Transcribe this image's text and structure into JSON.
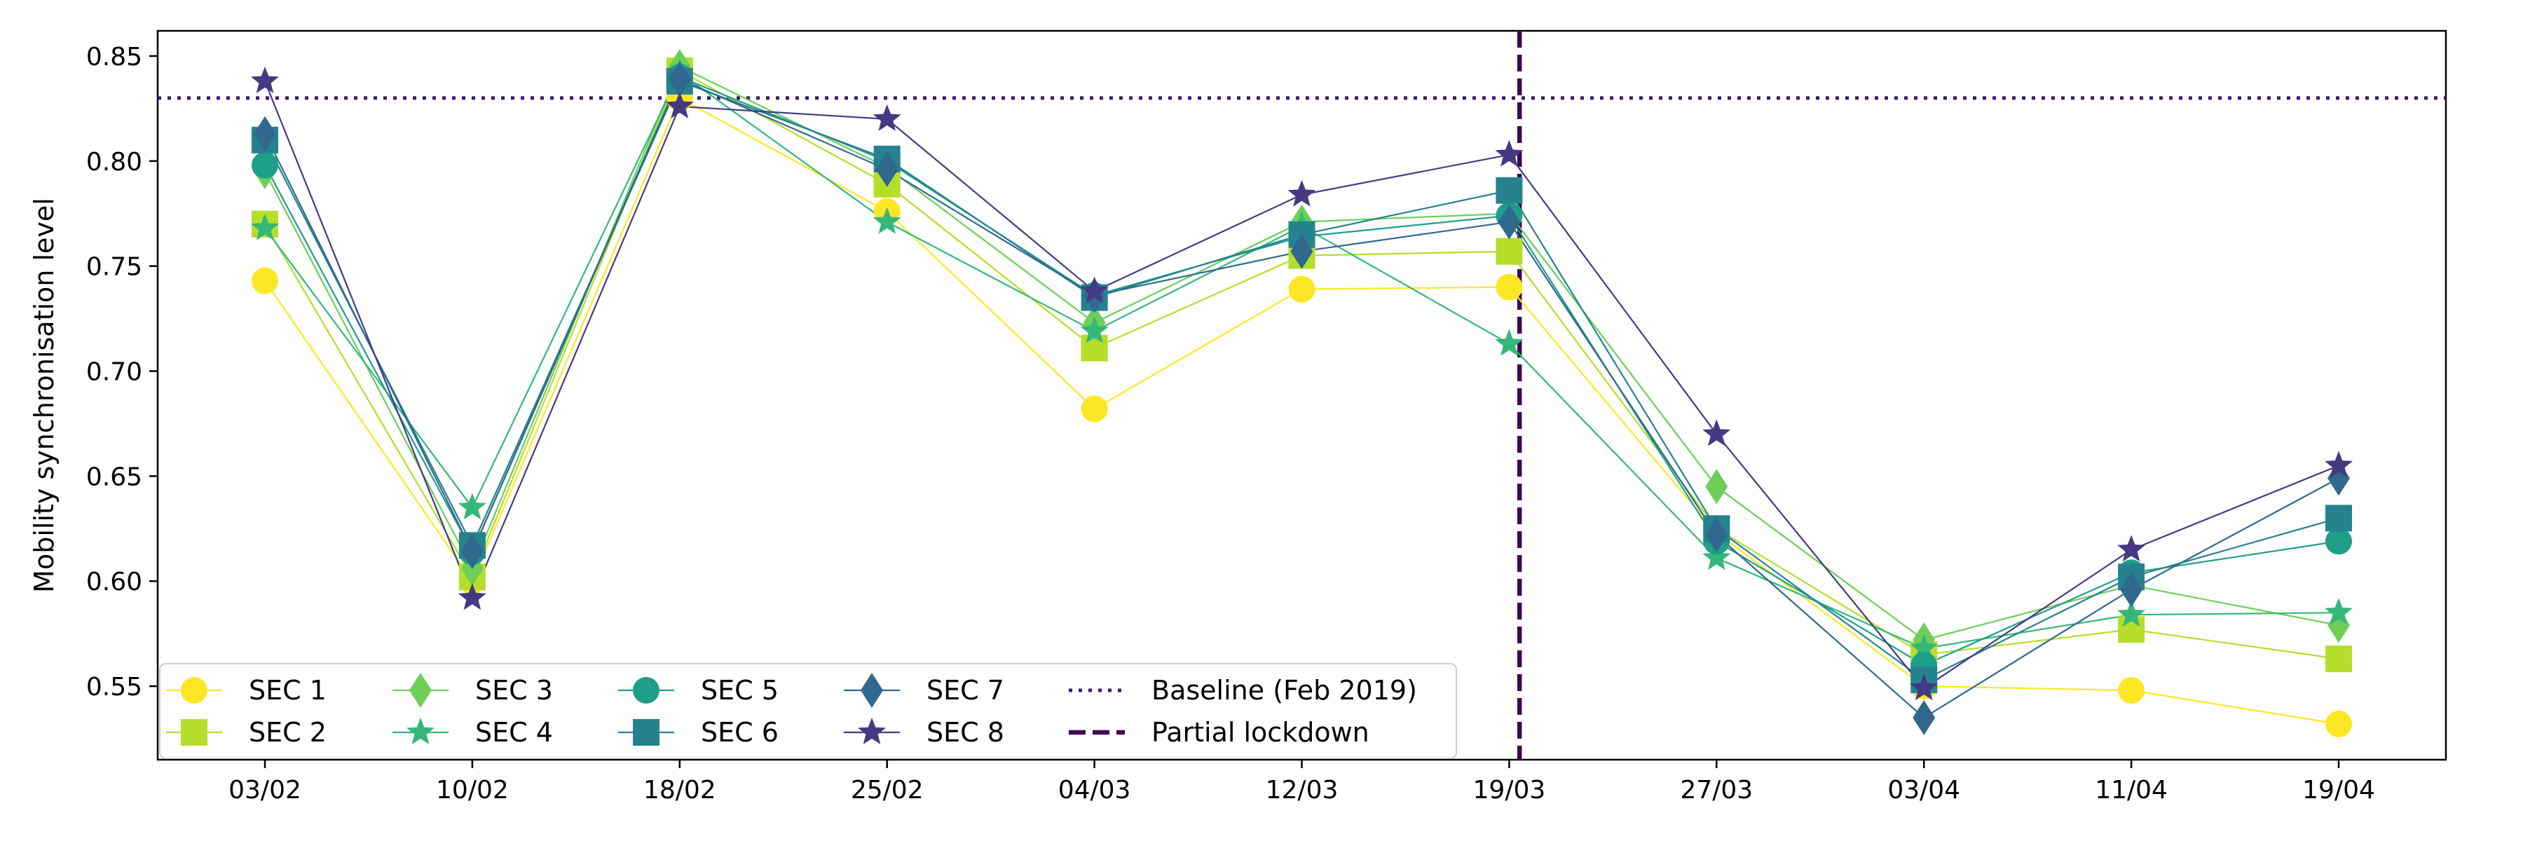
{
  "chart_data": {
    "type": "line",
    "title": "",
    "xlabel": "",
    "ylabel": "Mobility synchronisation level",
    "categories": [
      "03/02",
      "10/02",
      "18/02",
      "25/02",
      "04/03",
      "12/03",
      "19/03",
      "27/03",
      "03/04",
      "11/04",
      "19/04"
    ],
    "ylim": [
      0.515,
      0.862
    ],
    "yticks": [
      0.55,
      0.6,
      0.65,
      0.7,
      0.75,
      0.8,
      0.85
    ],
    "ytick_labels": [
      "0.55",
      "0.60",
      "0.65",
      "0.70",
      "0.75",
      "0.80",
      "0.85"
    ],
    "grid": false,
    "legend_position": "lower-left",
    "series": [
      {
        "name": "SEC 1",
        "color": "#fde725",
        "marker": "circle",
        "values": [
          0.743,
          0.6,
          0.83,
          0.776,
          0.682,
          0.739,
          0.74,
          0.623,
          0.55,
          0.548,
          0.532
        ]
      },
      {
        "name": "SEC 2",
        "color": "#b5de2b",
        "marker": "square",
        "values": [
          0.77,
          0.602,
          0.843,
          0.789,
          0.711,
          0.755,
          0.757,
          0.625,
          0.565,
          0.577,
          0.563
        ]
      },
      {
        "name": "SEC 3",
        "color": "#6ece58",
        "marker": "diamond",
        "values": [
          0.795,
          0.606,
          0.845,
          0.797,
          0.723,
          0.771,
          0.775,
          0.645,
          0.572,
          0.598,
          0.579
        ]
      },
      {
        "name": "SEC 4",
        "color": "#35b779",
        "marker": "star",
        "values": [
          0.768,
          0.635,
          0.842,
          0.771,
          0.719,
          0.769,
          0.713,
          0.611,
          0.568,
          0.584,
          0.585
        ]
      },
      {
        "name": "SEC 5",
        "color": "#1f9e89",
        "marker": "circle",
        "values": [
          0.798,
          0.614,
          0.84,
          0.8,
          0.736,
          0.764,
          0.774,
          0.619,
          0.56,
          0.604,
          0.619
        ]
      },
      {
        "name": "SEC 6",
        "color": "#26828e",
        "marker": "square",
        "values": [
          0.81,
          0.617,
          0.838,
          0.801,
          0.735,
          0.765,
          0.786,
          0.625,
          0.553,
          0.602,
          0.63
        ]
      },
      {
        "name": "SEC 7",
        "color": "#31688e",
        "marker": "diamond",
        "values": [
          0.813,
          0.614,
          0.839,
          0.796,
          0.736,
          0.757,
          0.771,
          0.622,
          0.535,
          0.596,
          0.649
        ]
      },
      {
        "name": "SEC 8",
        "color": "#443a83",
        "marker": "star",
        "values": [
          0.838,
          0.592,
          0.826,
          0.82,
          0.738,
          0.784,
          0.803,
          0.67,
          0.549,
          0.615,
          0.655
        ]
      }
    ],
    "reference_lines": [
      {
        "name": "Baseline (Feb 2019)",
        "orientation": "horizontal",
        "value": 0.83,
        "style": "dotted",
        "color": "#3b1c6b"
      },
      {
        "name": "Partial lockdown",
        "orientation": "vertical",
        "category": "19/03",
        "offset": 0.05,
        "style": "dashed",
        "color": "#3e0751"
      }
    ]
  }
}
